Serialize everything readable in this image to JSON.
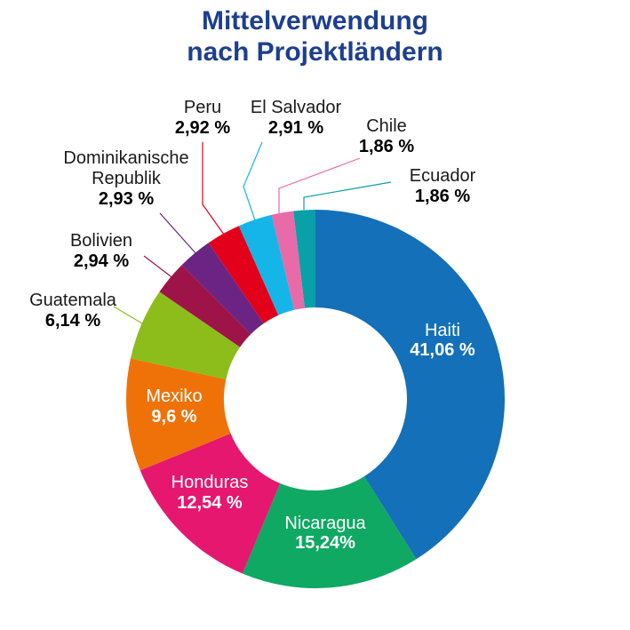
{
  "chart_data": {
    "type": "pie",
    "donut": true,
    "title_line1": "Mittelverwendung",
    "title_line2": "nach Projektländern",
    "slices": [
      {
        "label": "Haiti",
        "value": 41.06,
        "display": "41,06 %",
        "color": "#1470b8"
      },
      {
        "label": "Nicaragua",
        "value": 15.24,
        "display": "15,24%",
        "color": "#0fa963"
      },
      {
        "label": "Honduras",
        "value": 12.54,
        "display": "12,54 %",
        "color": "#e5176e"
      },
      {
        "label": "Mexiko",
        "value": 9.6,
        "display": "9,6 %",
        "color": "#ef7209"
      },
      {
        "label": "Guatemala",
        "value": 6.14,
        "display": "6,14 %",
        "color": "#8cbd1b"
      },
      {
        "label": "Bolivien",
        "value": 2.94,
        "display": "2,94 %",
        "color": "#9e1448"
      },
      {
        "label": "Dominikanische Republik",
        "value": 2.93,
        "display": "2,93 %",
        "color": "#6b2483"
      },
      {
        "label": "Peru",
        "value": 2.92,
        "display": "2,92 %",
        "color": "#e3001b"
      },
      {
        "label": "El Salvador",
        "value": 2.91,
        "display": "2,91 %",
        "color": "#16b5e8"
      },
      {
        "label": "Chile",
        "value": 1.86,
        "display": "1,86 %",
        "color": "#e96aa8"
      },
      {
        "label": "Ecuador",
        "value": 1.86,
        "display": "1,86 %",
        "color": "#0aa0a8"
      }
    ]
  }
}
